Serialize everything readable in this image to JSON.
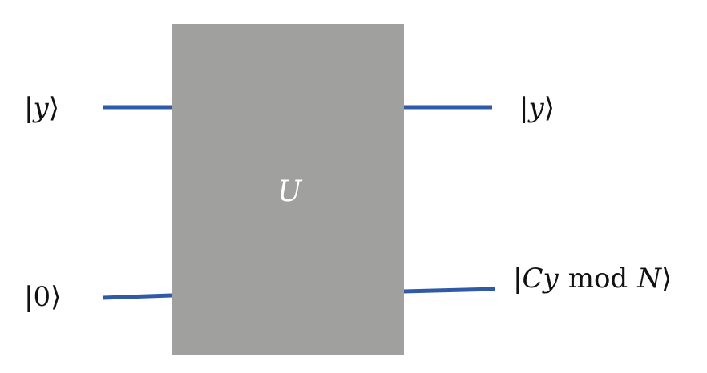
{
  "colors": {
    "wire": "#2f5aa8",
    "gate_fill": "#a0a09e",
    "gate_label": "#ffffff",
    "text": "#111111",
    "background": "#ffffff"
  },
  "gate": {
    "label": "U"
  },
  "inputs": [
    {
      "open": "|",
      "symbol": "y",
      "close": "⟩"
    },
    {
      "open": "|",
      "symbol": "0",
      "close": "⟩"
    }
  ],
  "outputs": [
    {
      "open": "|",
      "symbol": "y",
      "close": "⟩"
    },
    {
      "open": "|",
      "symbol_a": "Cy",
      "mod": "mod",
      "symbol_b": "N",
      "close": "⟩"
    }
  ]
}
